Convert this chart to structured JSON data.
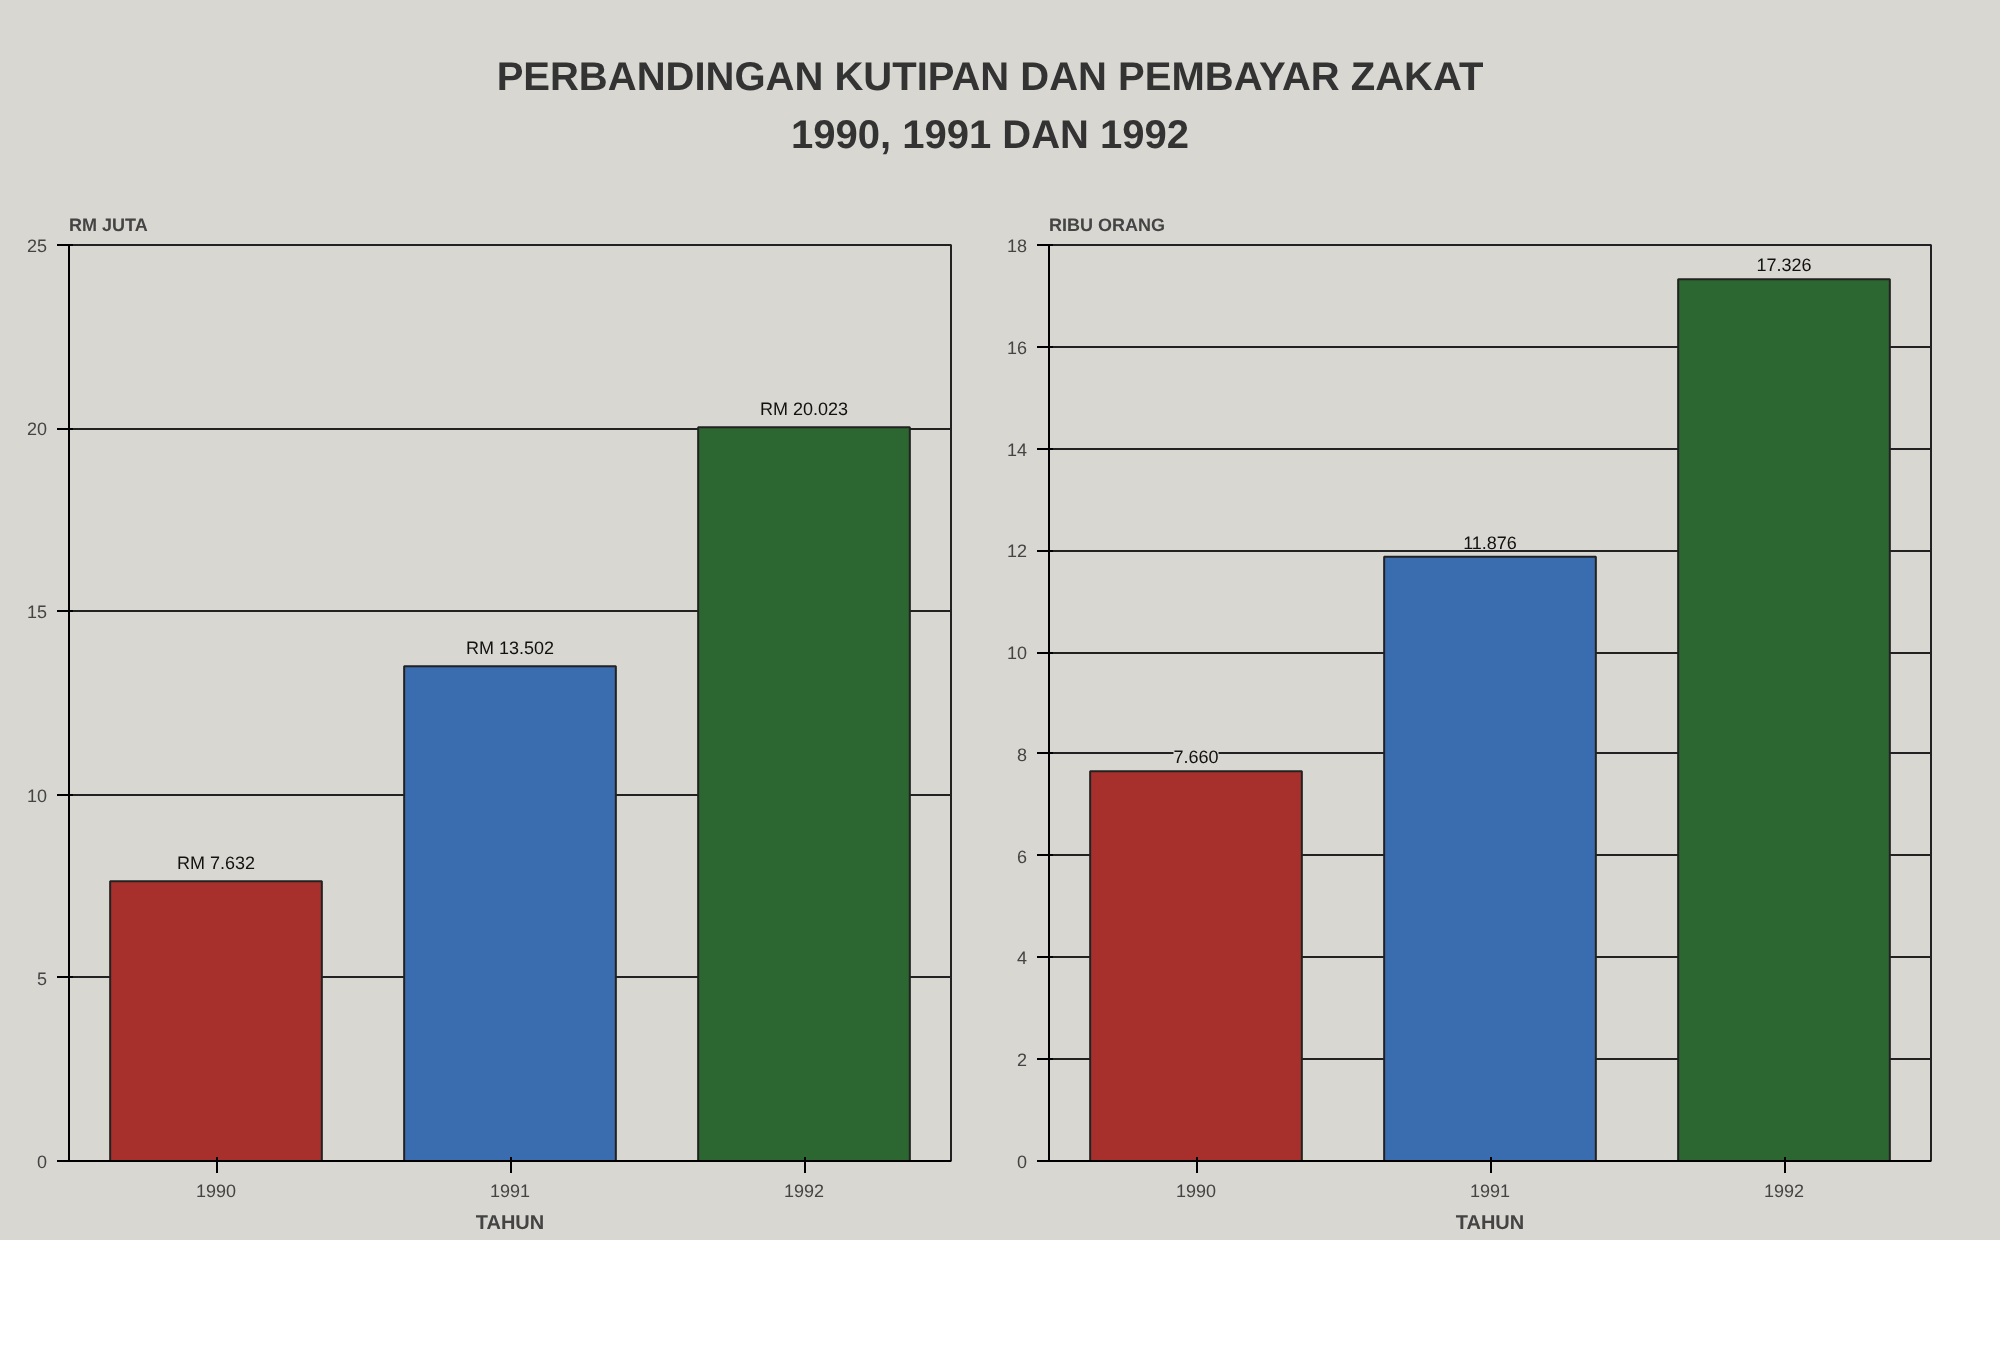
{
  "chart_data": [
    {
      "type": "bar",
      "title": "PERBANDINGAN KUTIPAN DAN PEMBAYAR ZAKAT\n1990, 1991 DAN 1992",
      "ylabel": "RM JUTA",
      "xlabel": "TAHUN",
      "categories": [
        "1990",
        "1991",
        "1992"
      ],
      "values": [
        7.632,
        13.502,
        20.023
      ],
      "colors": [
        "#a8302c",
        "#3a6cb0",
        "#2c6630"
      ],
      "value_labels": [
        "RM 7.632",
        "RM 13.502",
        "RM 20.023"
      ],
      "ylim": [
        0,
        25
      ],
      "yticks": [
        0,
        5,
        10,
        15,
        20,
        25
      ],
      "grid": "y"
    },
    {
      "type": "bar",
      "ylabel": "RIBU ORANG",
      "xlabel": "TAHUN",
      "categories": [
        "1990",
        "1991",
        "1992"
      ],
      "values": [
        7.66,
        11.876,
        17.326
      ],
      "colors": [
        "#a8302c",
        "#3a6cb0",
        "#2c6630"
      ],
      "value_labels": [
        "7.660",
        "11.876",
        "17.326"
      ],
      "ylim": [
        0,
        18
      ],
      "yticks": [
        0,
        2,
        4,
        6,
        8,
        10,
        12,
        14,
        16,
        18
      ],
      "grid": "y"
    }
  ]
}
